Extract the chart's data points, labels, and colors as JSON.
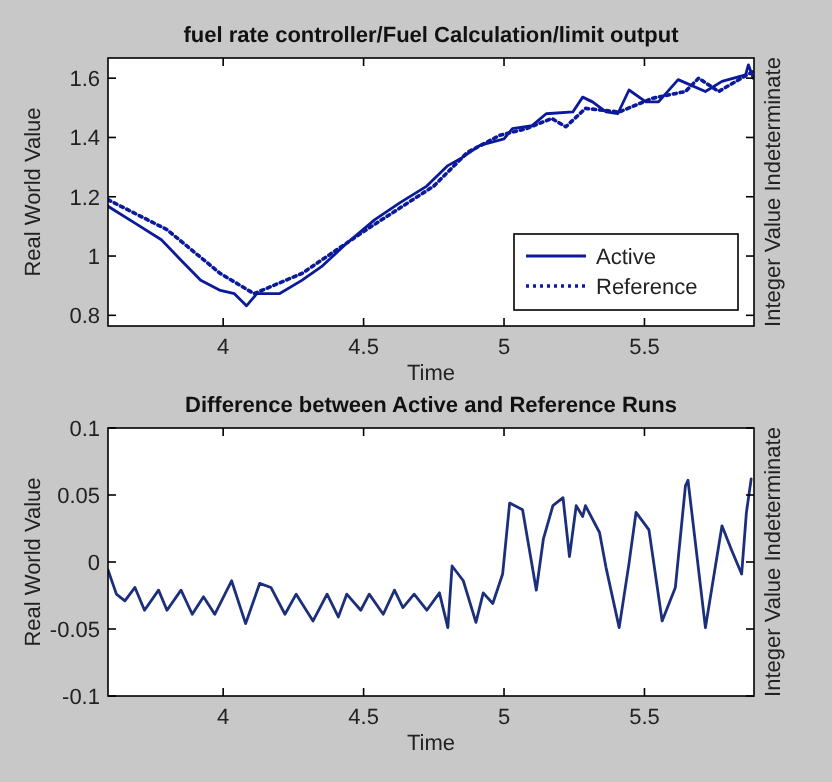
{
  "chart_data": [
    {
      "type": "line",
      "title": "fuel rate controller/Fuel  Calculation/limit output",
      "xlabel": "Time",
      "ylabel": "Real World Value",
      "y2label": "Integer Value Indeterminate",
      "xlim": [
        3.59,
        5.89
      ],
      "ylim": [
        0.764,
        1.668
      ],
      "xticks": [
        4,
        4.5,
        5,
        5.5
      ],
      "yticks": [
        0.8,
        1,
        1.2,
        1.4,
        1.6
      ],
      "grid": false,
      "legend": "bottom right",
      "series": [
        {
          "name": "Active",
          "color": "#0a1a9a",
          "line_style": "solid",
          "x": [
            3.59,
            3.686,
            3.78,
            3.85,
            3.92,
            3.99,
            4.04,
            4.083,
            4.12,
            4.2,
            4.28,
            4.35,
            4.44,
            4.54,
            4.63,
            4.725,
            4.8,
            4.843,
            4.914,
            5.0,
            5.03,
            5.1,
            5.15,
            5.245,
            5.28,
            5.315,
            5.363,
            5.405,
            5.445,
            5.505,
            5.55,
            5.62,
            5.717,
            5.776,
            5.86,
            5.87,
            5.887
          ],
          "values": [
            1.168,
            1.111,
            1.055,
            0.986,
            0.918,
            0.884,
            0.873,
            0.832,
            0.873,
            0.873,
            0.918,
            0.964,
            1.043,
            1.123,
            1.18,
            1.236,
            1.305,
            1.327,
            1.373,
            1.395,
            1.43,
            1.44,
            1.48,
            1.486,
            1.536,
            1.52,
            1.486,
            1.48,
            1.56,
            1.52,
            1.52,
            1.595,
            1.555,
            1.589,
            1.611,
            1.645,
            1.6
          ]
        },
        {
          "name": "Reference",
          "color": "#0a1a9a",
          "line_style": "dotted",
          "x": [
            3.59,
            3.8,
            3.99,
            4.11,
            4.28,
            4.51,
            4.75,
            4.87,
            4.985,
            5.08,
            5.17,
            5.22,
            5.29,
            5.41,
            5.528,
            5.646,
            5.693,
            5.764,
            5.887
          ],
          "values": [
            1.19,
            1.089,
            0.941,
            0.873,
            0.941,
            1.089,
            1.236,
            1.35,
            1.407,
            1.43,
            1.464,
            1.436,
            1.498,
            1.486,
            1.532,
            1.555,
            1.6,
            1.555,
            1.623
          ]
        }
      ]
    },
    {
      "type": "line",
      "title": "Difference between Active and Reference Runs",
      "xlabel": "Time",
      "ylabel": "Real World Value",
      "y2label": "Integer Value Indeterminate",
      "xlim": [
        3.59,
        5.89
      ],
      "ylim": [
        -0.1,
        0.1
      ],
      "xticks": [
        4,
        4.5,
        5,
        5.5
      ],
      "yticks": [
        -0.1,
        -0.05,
        0,
        0.05,
        0.1
      ],
      "grid": false,
      "legend": false,
      "series": [
        {
          "color": "#1c2f7a",
          "line_style": "solid",
          "x": [
            3.59,
            3.62,
            3.65,
            3.686,
            3.72,
            3.77,
            3.8,
            3.85,
            3.89,
            3.93,
            3.97,
            4.03,
            4.08,
            4.13,
            4.17,
            4.22,
            4.26,
            4.32,
            4.37,
            4.41,
            4.44,
            4.49,
            4.52,
            4.57,
            4.61,
            4.64,
            4.68,
            4.725,
            4.77,
            4.8,
            4.815,
            4.855,
            4.9,
            4.926,
            4.96,
            4.995,
            5.02,
            5.066,
            5.115,
            5.14,
            5.174,
            5.21,
            5.233,
            5.257,
            5.28,
            5.29,
            5.34,
            5.363,
            5.41,
            5.445,
            5.47,
            5.516,
            5.563,
            5.61,
            5.646,
            5.655,
            5.717,
            5.776,
            5.81,
            5.846,
            5.863,
            5.88
          ],
          "values": [
            -0.006,
            -0.024,
            -0.029,
            -0.019,
            -0.036,
            -0.021,
            -0.036,
            -0.021,
            -0.039,
            -0.026,
            -0.039,
            -0.014,
            -0.046,
            -0.016,
            -0.019,
            -0.039,
            -0.024,
            -0.044,
            -0.024,
            -0.041,
            -0.024,
            -0.036,
            -0.024,
            -0.039,
            -0.021,
            -0.034,
            -0.024,
            -0.036,
            -0.023,
            -0.049,
            -0.003,
            -0.014,
            -0.045,
            -0.023,
            -0.031,
            -0.009,
            0.044,
            0.039,
            -0.021,
            0.017,
            0.042,
            0.048,
            0.004,
            0.042,
            0.034,
            0.042,
            0.022,
            -0.004,
            -0.049,
            -0.001,
            0.037,
            0.024,
            -0.044,
            -0.019,
            0.057,
            0.061,
            -0.049,
            0.027,
            0.009,
            -0.009,
            0.037,
            0.062
          ]
        }
      ]
    }
  ]
}
